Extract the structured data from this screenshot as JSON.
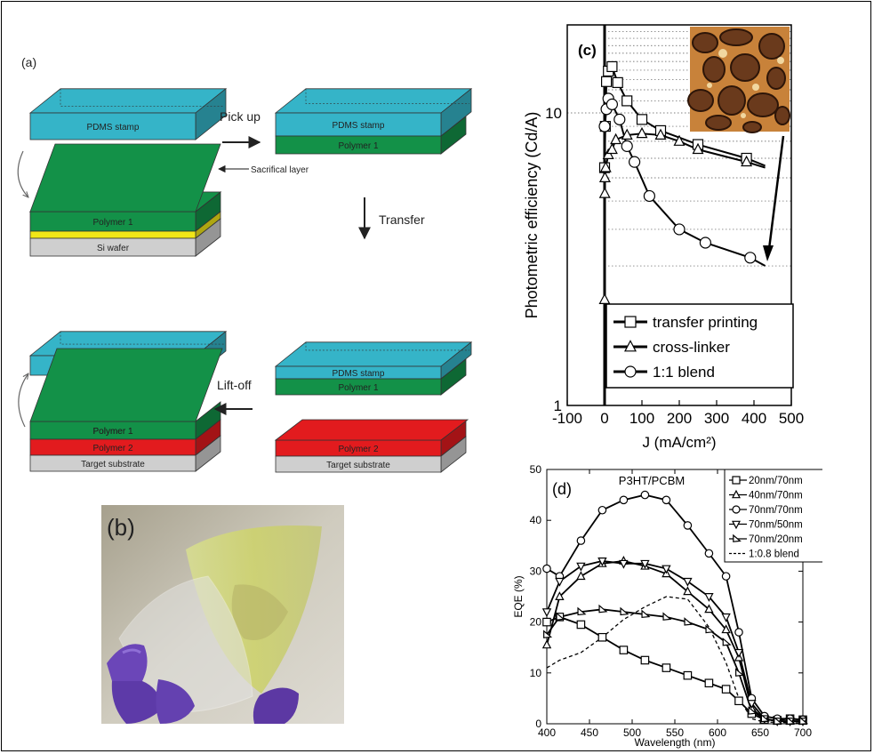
{
  "panel_a": {
    "label": "(a)",
    "steps": {
      "pick_up": "Pick up",
      "transfer": "Transfer",
      "lift_off": "Lift-off"
    },
    "layers": {
      "pdms": "PDMS stamp",
      "polymer1": "Polymer 1",
      "polymer2": "Polymer 2",
      "si_wafer": "Si wafer",
      "target": "Target substrate",
      "sacrificial": "Sacrifical layer"
    },
    "colors": {
      "pdms": "#35b4c8",
      "polymer1": "#139148",
      "polymer2": "#e21b1e",
      "sacrificial": "#f1e617",
      "substrate": "#cfcfcf"
    }
  },
  "panel_b": {
    "label": "(b)"
  },
  "chart_data": [
    {
      "id": "c",
      "type": "line",
      "label": "(c)",
      "xlabel": "J (mA/cm²)",
      "ylabel": "Photometric efficiency (Cd/A)",
      "x_ticks": [
        "-100",
        "0",
        "100",
        "200",
        "300",
        "400",
        "500"
      ],
      "y_ticks": [
        "1",
        "10"
      ],
      "xlim": [
        -100,
        500
      ],
      "ylim": [
        1,
        20
      ],
      "yscale": "log",
      "legend_position": "bottom-right",
      "series": [
        {
          "name": "transfer printing",
          "marker": "square",
          "x": [
            0,
            2,
            5,
            10,
            20,
            35,
            60,
            100,
            150,
            250,
            380,
            430
          ],
          "y": [
            6.5,
            9,
            12.8,
            13.9,
            14.4,
            12.7,
            11,
            9.5,
            8.7,
            7.8,
            7.0,
            6.6
          ]
        },
        {
          "name": "cross-linker",
          "marker": "triangle",
          "x": [
            0,
            0.5,
            1,
            3,
            10,
            20,
            30,
            60,
            100,
            150,
            200,
            250,
            380,
            430
          ],
          "y": [
            2.3,
            5.3,
            6.0,
            6.5,
            7.2,
            7.5,
            8.1,
            8.4,
            8.5,
            8.4,
            8.0,
            7.5,
            6.8,
            6.5
          ]
        },
        {
          "name": "1:1 blend",
          "marker": "circle",
          "x": [
            0,
            5,
            10,
            20,
            40,
            60,
            80,
            120,
            200,
            270,
            390,
            430
          ],
          "y": [
            9.0,
            10.3,
            11.2,
            10.7,
            9.5,
            7.7,
            6.8,
            5.2,
            4.0,
            3.6,
            3.2,
            3.0
          ]
        }
      ]
    },
    {
      "id": "d",
      "type": "line",
      "label": "(d)",
      "title": "P3HT/PCBM",
      "xlabel": "Wavelength (nm)",
      "ylabel": "EQE (%)",
      "xlim": [
        400,
        700
      ],
      "ylim": [
        0,
        50
      ],
      "x_ticks": [
        "400",
        "450",
        "500",
        "550",
        "600",
        "650",
        "700"
      ],
      "y_ticks": [
        "0",
        "10",
        "20",
        "30",
        "40",
        "50"
      ],
      "legend_position": "top-right",
      "x": [
        400,
        415,
        440,
        465,
        490,
        515,
        540,
        565,
        590,
        610,
        625,
        640,
        655,
        670,
        685,
        700
      ],
      "series": [
        {
          "name": "20nm/70nm",
          "marker": "square",
          "y": [
            20,
            21,
            19.5,
            17,
            14.5,
            12.5,
            11,
            9.5,
            8,
            6.8,
            4.5,
            2,
            0.8,
            0.7,
            1,
            0.8
          ]
        },
        {
          "name": "40nm/70nm",
          "marker": "triangle-up",
          "y": [
            15.5,
            25,
            29,
            31.5,
            32,
            31,
            29.5,
            26,
            22.5,
            18.5,
            13,
            3,
            1,
            0.5,
            0.5,
            0.5
          ]
        },
        {
          "name": "70nm/70nm",
          "marker": "circle",
          "y": [
            30.5,
            29,
            36,
            42,
            44,
            45,
            44,
            39,
            33.5,
            29,
            18,
            5,
            1.5,
            1,
            1,
            0.8
          ]
        },
        {
          "name": "70nm/50nm",
          "marker": "triangle-down",
          "y": [
            22,
            28,
            31,
            32,
            31.5,
            31.5,
            30.5,
            28,
            25,
            21,
            14,
            4,
            1,
            0.5,
            0.5,
            0.5
          ]
        },
        {
          "name": "70nm/20nm",
          "marker": "triangle-right",
          "y": [
            17.5,
            21,
            22,
            22.5,
            22,
            21.5,
            21,
            20,
            18.5,
            16,
            10,
            2.5,
            1,
            0.5,
            0.5,
            0.5
          ]
        },
        {
          "name": "1:0.8 blend",
          "marker": "none",
          "dashed": true,
          "y": [
            11,
            12.5,
            14,
            17,
            20.5,
            23,
            25,
            24.5,
            19,
            12,
            5,
            1,
            0.3,
            0.3,
            0.2,
            0.2
          ]
        }
      ]
    }
  ]
}
